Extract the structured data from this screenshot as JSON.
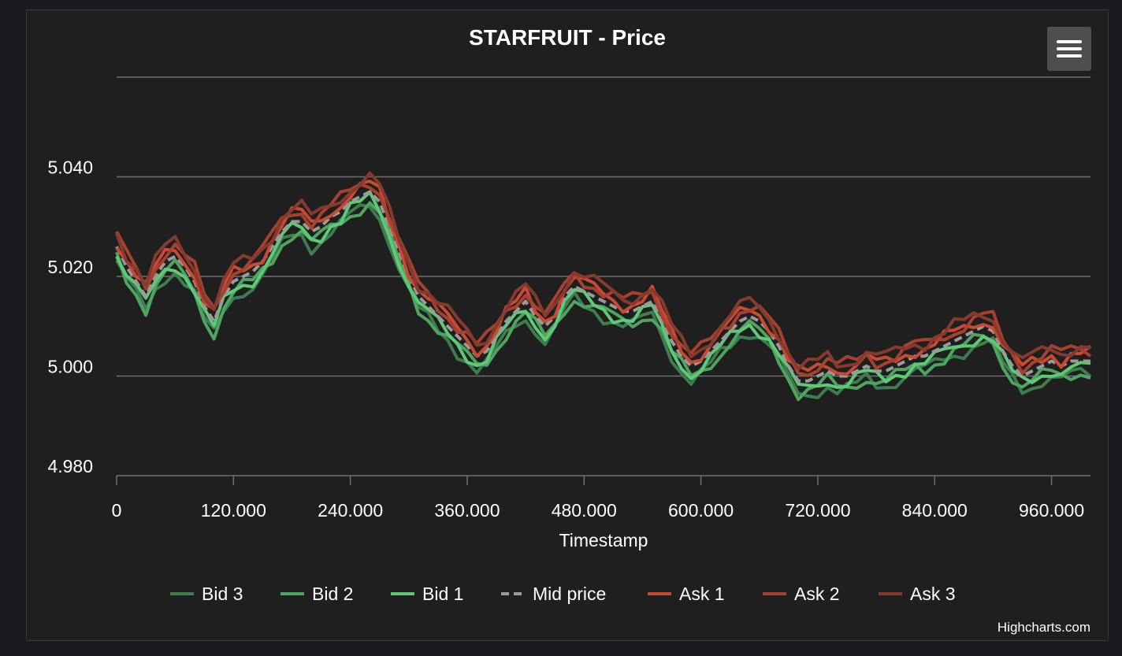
{
  "chart_data": {
    "type": "line",
    "title": "STARFRUIT - Price",
    "xlabel": "Timestamp",
    "ylabel": "",
    "xlim": [
      0,
      1000000
    ],
    "ylim": [
      4.98,
      5.06
    ],
    "x_ticks": [
      0,
      120000,
      240000,
      360000,
      480000,
      600000,
      720000,
      840000,
      960000
    ],
    "x_tick_labels": [
      "0",
      "120.000",
      "240.000",
      "360.000",
      "480.000",
      "600.000",
      "720.000",
      "840.000",
      "960.000"
    ],
    "y_ticks": [
      4.98,
      5.0,
      5.02,
      5.04,
      5.06
    ],
    "y_tick_labels": [
      "4.980",
      "5.000",
      "5.020",
      "5.040",
      ""
    ],
    "grid": true,
    "legend_position": "bottom-center",
    "mid_price": {
      "x": [
        0,
        10000,
        20000,
        30000,
        40000,
        50000,
        60000,
        70000,
        80000,
        90000,
        100000,
        110000,
        120000,
        130000,
        140000,
        150000,
        160000,
        170000,
        180000,
        190000,
        200000,
        210000,
        220000,
        230000,
        240000,
        250000,
        260000,
        270000,
        280000,
        290000,
        300000,
        310000,
        320000,
        330000,
        340000,
        350000,
        360000,
        370000,
        380000,
        390000,
        400000,
        410000,
        420000,
        430000,
        440000,
        450000,
        460000,
        470000,
        480000,
        490000,
        500000,
        510000,
        520000,
        530000,
        540000,
        550000,
        560000,
        570000,
        580000,
        590000,
        600000,
        610000,
        620000,
        630000,
        640000,
        650000,
        660000,
        670000,
        680000,
        690000,
        700000,
        710000,
        720000,
        730000,
        740000,
        750000,
        760000,
        770000,
        780000,
        790000,
        800000,
        810000,
        820000,
        830000,
        840000,
        850000,
        860000,
        870000,
        880000,
        890000,
        900000,
        910000,
        920000,
        930000,
        940000,
        950000,
        960000,
        970000,
        980000,
        990000,
        1000000
      ],
      "y": [
        5.026,
        5.022,
        5.019,
        5.016,
        5.02,
        5.023,
        5.024,
        5.022,
        5.019,
        5.014,
        5.011,
        5.016,
        5.019,
        5.02,
        5.021,
        5.023,
        5.026,
        5.029,
        5.031,
        5.031,
        5.029,
        5.03,
        5.032,
        5.033,
        5.035,
        5.036,
        5.037,
        5.035,
        5.03,
        5.025,
        5.02,
        5.016,
        5.014,
        5.012,
        5.01,
        5.008,
        5.006,
        5.004,
        5.005,
        5.008,
        5.011,
        5.013,
        5.015,
        5.012,
        5.01,
        5.012,
        5.016,
        5.018,
        5.017,
        5.016,
        5.015,
        5.014,
        5.013,
        5.013,
        5.014,
        5.015,
        5.011,
        5.007,
        5.004,
        5.002,
        5.003,
        5.005,
        5.007,
        5.009,
        5.011,
        5.012,
        5.011,
        5.009,
        5.006,
        5.002,
        4.999,
        4.999,
        5.0,
        5.001,
        5.0,
        5.0,
        5.001,
        5.002,
        5.001,
        5.001,
        5.002,
        5.003,
        5.004,
        5.004,
        5.005,
        5.006,
        5.007,
        5.008,
        5.009,
        5.01,
        5.009,
        5.005,
        5.002,
        5.0,
        5.001,
        5.002,
        5.003,
        5.002,
        5.003,
        5.003,
        5.003
      ]
    },
    "series": [
      {
        "name": "Bid 3",
        "offset": -0.0028,
        "color": "#3f7d4f",
        "dash": "solid"
      },
      {
        "name": "Bid 2",
        "offset": -0.0022,
        "color": "#4ea560",
        "dash": "solid"
      },
      {
        "name": "Bid 1",
        "offset": -0.0015,
        "color": "#5ec977",
        "dash": "solid"
      },
      {
        "name": "Mid price",
        "offset": 0,
        "color": "#9a9a9a",
        "dash": "dashed"
      },
      {
        "name": "Ask 1",
        "offset": 0.0015,
        "color": "#c84a33",
        "dash": "solid"
      },
      {
        "name": "Ask 2",
        "offset": 0.0022,
        "color": "#a7412f",
        "dash": "solid"
      },
      {
        "name": "Ask 3",
        "offset": 0.0028,
        "color": "#863a2e",
        "dash": "solid"
      }
    ]
  },
  "credits": "Highcharts.com",
  "menu_icon": "hamburger-menu-icon",
  "colors": {
    "background": "#1f1f1f",
    "grid": "#707070",
    "text": "#ffffff"
  }
}
